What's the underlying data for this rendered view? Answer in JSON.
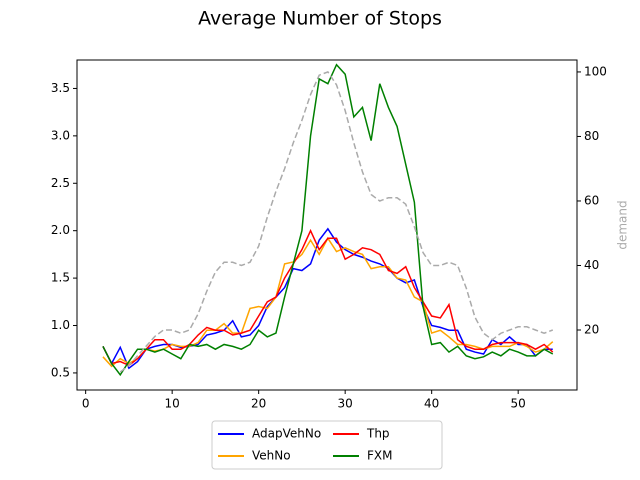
{
  "chart_data": {
    "type": "line",
    "title": "Average Number of Stops",
    "y2label": "demand",
    "x": [
      2,
      3,
      4,
      5,
      6,
      7,
      8,
      9,
      10,
      11,
      12,
      13,
      14,
      15,
      16,
      17,
      18,
      19,
      20,
      21,
      22,
      23,
      24,
      25,
      26,
      27,
      28,
      29,
      30,
      31,
      32,
      33,
      34,
      35,
      36,
      37,
      38,
      39,
      40,
      41,
      42,
      43,
      44,
      45,
      46,
      47,
      48,
      49,
      50,
      51,
      52,
      53,
      54
    ],
    "xlim": [
      -1,
      56.8
    ],
    "xticks": [
      0,
      10,
      20,
      30,
      40,
      50
    ],
    "ylim": [
      0.32,
      3.8
    ],
    "yticks": [
      {
        "value": 0.5,
        "label": "0.5"
      },
      {
        "value": 1,
        "label": "1.0"
      },
      {
        "value": 1.5,
        "label": "1.5"
      },
      {
        "value": 2,
        "label": "2.0"
      },
      {
        "value": 2.5,
        "label": "2.5"
      },
      {
        "value": 3,
        "label": "3.0"
      },
      {
        "value": 3.5,
        "label": "3.5"
      }
    ],
    "y2lim": [
      1.4,
      103.7
    ],
    "y2ticks": [
      20,
      40,
      60,
      80,
      100
    ],
    "legend": "lower center",
    "series": [
      {
        "name": "AdapVehNo",
        "color": "#0000ff",
        "values": [
          0.78,
          0.6,
          0.77,
          0.55,
          0.62,
          0.75,
          0.78,
          0.8,
          0.8,
          0.77,
          0.78,
          0.8,
          0.9,
          0.92,
          0.95,
          1.05,
          0.88,
          0.9,
          1.0,
          1.2,
          1.3,
          1.4,
          1.6,
          1.58,
          1.65,
          1.9,
          2.02,
          1.88,
          1.8,
          1.75,
          1.72,
          1.68,
          1.65,
          1.6,
          1.5,
          1.45,
          1.48,
          1.2,
          1.0,
          0.98,
          0.95,
          0.95,
          0.75,
          0.72,
          0.7,
          0.85,
          0.8,
          0.88,
          0.8,
          0.8,
          0.68,
          0.75,
          0.75
        ]
      },
      {
        "name": "VehNo",
        "color": "#ffa500",
        "values": [
          0.67,
          0.57,
          0.65,
          0.6,
          0.65,
          0.75,
          0.73,
          0.75,
          0.8,
          0.78,
          0.78,
          0.82,
          0.95,
          0.95,
          1.02,
          0.92,
          0.92,
          1.18,
          1.2,
          1.18,
          1.3,
          1.65,
          1.67,
          1.75,
          1.9,
          1.75,
          1.92,
          1.78,
          1.82,
          1.78,
          1.75,
          1.6,
          1.62,
          1.62,
          1.5,
          1.48,
          1.3,
          1.25,
          0.92,
          0.95,
          0.88,
          0.8,
          0.8,
          0.78,
          0.75,
          0.78,
          0.78,
          0.78,
          0.82,
          0.78,
          0.72,
          0.75,
          0.83
        ]
      },
      {
        "name": "Thp",
        "color": "#ff0000",
        "values": [
          0.78,
          0.6,
          0.62,
          0.58,
          0.65,
          0.75,
          0.85,
          0.85,
          0.75,
          0.75,
          0.8,
          0.9,
          0.98,
          0.95,
          0.95,
          0.9,
          0.92,
          0.95,
          1.1,
          1.25,
          1.3,
          1.5,
          1.65,
          1.8,
          2.0,
          1.8,
          1.92,
          1.92,
          1.7,
          1.75,
          1.82,
          1.8,
          1.75,
          1.58,
          1.55,
          1.62,
          1.4,
          1.25,
          1.1,
          1.08,
          1.22,
          0.85,
          0.78,
          0.75,
          0.75,
          0.8,
          0.82,
          0.82,
          0.82,
          0.8,
          0.75,
          0.8,
          0.72
        ]
      },
      {
        "name": "FXM",
        "color": "#008000",
        "values": [
          0.78,
          0.6,
          0.48,
          0.62,
          0.75,
          0.75,
          0.72,
          0.75,
          0.7,
          0.65,
          0.8,
          0.78,
          0.8,
          0.75,
          0.8,
          0.78,
          0.75,
          0.8,
          0.95,
          0.88,
          0.92,
          1.3,
          1.65,
          2.0,
          3.0,
          3.6,
          3.55,
          3.75,
          3.65,
          3.2,
          3.3,
          2.95,
          3.55,
          3.3,
          3.1,
          2.7,
          2.3,
          1.2,
          0.8,
          0.82,
          0.72,
          0.78,
          0.68,
          0.65,
          0.67,
          0.72,
          0.68,
          0.75,
          0.72,
          0.68,
          0.68,
          0.75,
          0.7
        ]
      },
      {
        "color": "#aaaaaa",
        "axis": "y2",
        "dashed": true,
        "values": [
          null,
          null,
          7,
          9,
          12,
          15,
          18,
          20,
          20,
          19,
          20,
          25,
          32,
          38,
          41,
          41,
          40,
          41,
          46,
          55,
          63,
          70,
          78,
          85,
          93,
          99,
          100,
          96,
          88,
          78,
          69,
          62,
          60,
          61,
          61,
          59,
          52,
          44,
          40,
          40,
          41,
          40,
          33,
          24,
          19,
          17,
          19,
          20,
          21,
          21,
          20,
          19,
          20
        ]
      }
    ]
  }
}
